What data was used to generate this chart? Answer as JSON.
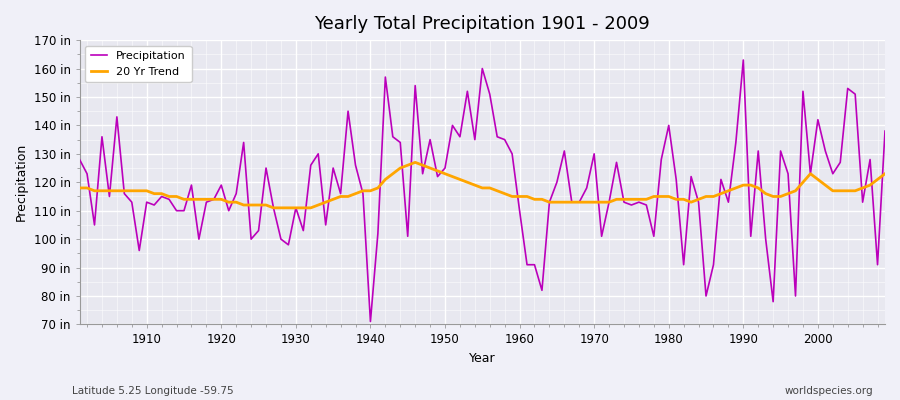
{
  "title": "Yearly Total Precipitation 1901 - 2009",
  "xlabel": "Year",
  "ylabel": "Precipitation",
  "subtitle": "Latitude 5.25 Longitude -59.75",
  "watermark": "worldspecies.org",
  "ylim": [
    70,
    170
  ],
  "yticks": [
    70,
    80,
    90,
    100,
    110,
    120,
    130,
    140,
    150,
    160,
    170
  ],
  "ytick_labels": [
    "70 in",
    "80 in",
    "90 in",
    "100 in",
    "110 in",
    "120 in",
    "130 in",
    "140 in",
    "150 in",
    "160 in",
    "170 in"
  ],
  "xticks": [
    1910,
    1920,
    1930,
    1940,
    1950,
    1960,
    1970,
    1980,
    1990,
    2000
  ],
  "bg_color": "#f0f0f8",
  "plot_bg_color": "#e8e8f0",
  "precip_color": "#bb00bb",
  "trend_color": "#ffa500",
  "legend_bg": "#ffffff",
  "years": [
    1901,
    1902,
    1903,
    1904,
    1905,
    1906,
    1907,
    1908,
    1909,
    1910,
    1911,
    1912,
    1913,
    1914,
    1915,
    1916,
    1917,
    1918,
    1919,
    1920,
    1921,
    1922,
    1923,
    1924,
    1925,
    1926,
    1927,
    1928,
    1929,
    1930,
    1931,
    1932,
    1933,
    1934,
    1935,
    1936,
    1937,
    1938,
    1939,
    1940,
    1941,
    1942,
    1943,
    1944,
    1945,
    1946,
    1947,
    1948,
    1949,
    1950,
    1951,
    1952,
    1953,
    1954,
    1955,
    1956,
    1957,
    1958,
    1959,
    1960,
    1961,
    1962,
    1963,
    1964,
    1965,
    1966,
    1967,
    1968,
    1969,
    1970,
    1971,
    1972,
    1973,
    1974,
    1975,
    1976,
    1977,
    1978,
    1979,
    1980,
    1981,
    1982,
    1983,
    1984,
    1985,
    1986,
    1987,
    1988,
    1989,
    1990,
    1991,
    1992,
    1993,
    1994,
    1995,
    1996,
    1997,
    1998,
    1999,
    2000,
    2001,
    2002,
    2003,
    2004,
    2005,
    2006,
    2007,
    2008,
    2009
  ],
  "precipitation": [
    128,
    123,
    105,
    136,
    115,
    143,
    116,
    113,
    96,
    113,
    112,
    115,
    114,
    110,
    110,
    119,
    100,
    113,
    114,
    119,
    110,
    116,
    134,
    100,
    103,
    125,
    111,
    100,
    98,
    111,
    103,
    126,
    130,
    105,
    125,
    116,
    145,
    126,
    116,
    71,
    102,
    157,
    136,
    134,
    101,
    154,
    123,
    135,
    122,
    125,
    140,
    136,
    152,
    135,
    160,
    151,
    136,
    135,
    130,
    110,
    91,
    91,
    82,
    113,
    120,
    131,
    113,
    113,
    118,
    130,
    101,
    113,
    127,
    113,
    112,
    113,
    112,
    101,
    128,
    140,
    121,
    91,
    122,
    113,
    80,
    91,
    121,
    113,
    134,
    163,
    101,
    131,
    100,
    78,
    131,
    123,
    80,
    152,
    123,
    142,
    131,
    123,
    127,
    153,
    151,
    113,
    128,
    91,
    138
  ],
  "trend": [
    118,
    118,
    117,
    117,
    117,
    117,
    117,
    117,
    117,
    117,
    116,
    116,
    115,
    115,
    114,
    114,
    114,
    114,
    114,
    114,
    113,
    113,
    112,
    112,
    112,
    112,
    111,
    111,
    111,
    111,
    111,
    111,
    112,
    113,
    114,
    115,
    115,
    116,
    117,
    117,
    118,
    121,
    123,
    125,
    126,
    127,
    126,
    125,
    124,
    123,
    122,
    121,
    120,
    119,
    118,
    118,
    117,
    116,
    115,
    115,
    115,
    114,
    114,
    113,
    113,
    113,
    113,
    113,
    113,
    113,
    113,
    113,
    114,
    114,
    114,
    114,
    114,
    115,
    115,
    115,
    114,
    114,
    113,
    114,
    115,
    115,
    116,
    117,
    118,
    119,
    119,
    118,
    116,
    115,
    115,
    116,
    117,
    120,
    123,
    121,
    119,
    117,
    117,
    117,
    117,
    118,
    119,
    121,
    123
  ]
}
